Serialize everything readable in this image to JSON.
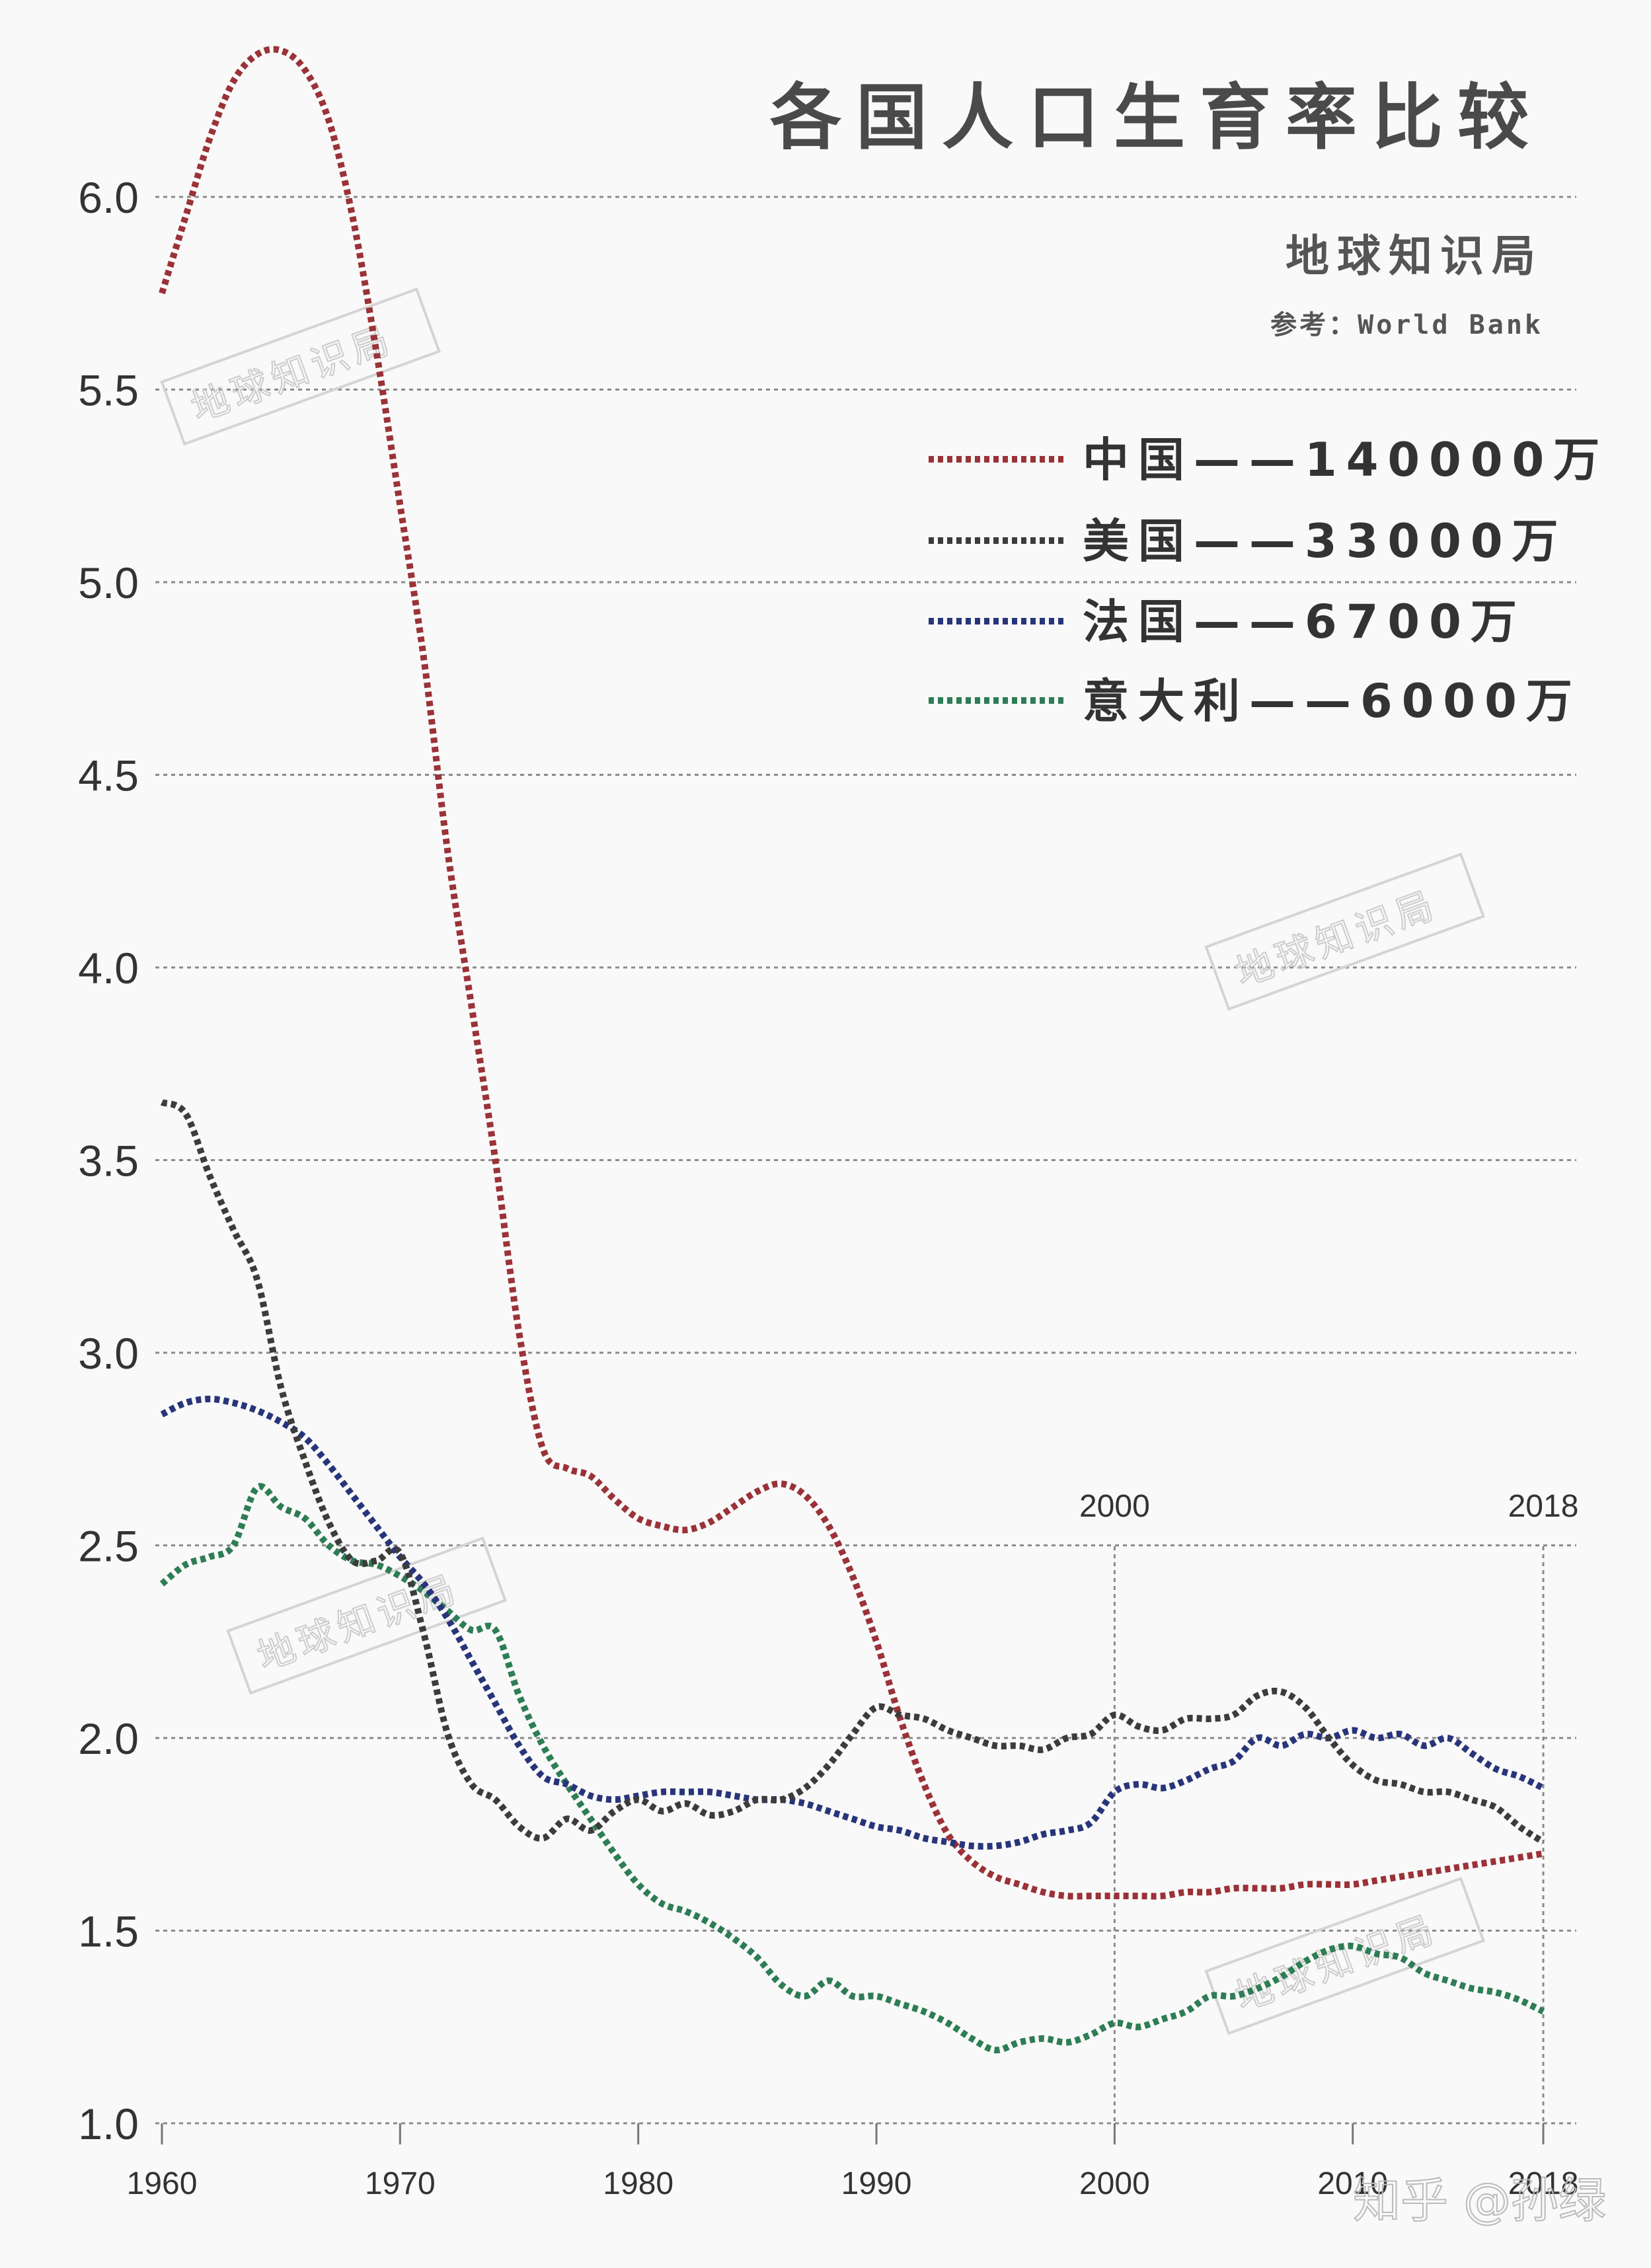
{
  "title": "各国人口生育率比较",
  "subtitle": "地球知识局",
  "source": "参考：World Bank",
  "watermark": "地球知识局",
  "footer_watermark": "知乎 @孙绿",
  "chart_data": {
    "type": "line",
    "ylim": [
      1.0,
      6.2
    ],
    "xlim": [
      1960,
      2018
    ],
    "grid": true,
    "legend_position": "top-right",
    "yticks": [
      "1.0",
      "1.5",
      "2.0",
      "2.5",
      "3.0",
      "3.5",
      "4.0",
      "4.5",
      "5.0",
      "5.5",
      "6.0"
    ],
    "xticks": [
      "1960",
      "1970",
      "1980",
      "1990",
      "2000",
      "2010",
      "2018"
    ],
    "annotations": [
      {
        "x": 2000,
        "label": "2000"
      },
      {
        "x": 2018,
        "label": "2018"
      }
    ],
    "series": [
      {
        "name": "中国",
        "legend": "中国——140000万",
        "color": "#9b3238",
        "x": [
          1960,
          1961,
          1962,
          1963,
          1964,
          1965,
          1966,
          1967,
          1968,
          1969,
          1970,
          1971,
          1972,
          1973,
          1974,
          1975,
          1976,
          1977,
          1978,
          1979,
          1980,
          1981,
          1982,
          1983,
          1984,
          1985,
          1986,
          1987,
          1988,
          1989,
          1990,
          1991,
          1992,
          1993,
          1994,
          1995,
          1996,
          1997,
          1998,
          1999,
          2000,
          2001,
          2002,
          2003,
          2004,
          2005,
          2006,
          2007,
          2008,
          2009,
          2010,
          2011,
          2012,
          2013,
          2014,
          2015,
          2016,
          2017,
          2018
        ],
        "y": [
          5.75,
          5.95,
          6.15,
          6.3,
          6.37,
          6.38,
          6.33,
          6.2,
          5.95,
          5.6,
          5.2,
          4.8,
          4.3,
          3.9,
          3.5,
          3.05,
          2.75,
          2.7,
          2.68,
          2.62,
          2.57,
          2.55,
          2.54,
          2.56,
          2.6,
          2.64,
          2.66,
          2.63,
          2.55,
          2.42,
          2.25,
          2.05,
          1.88,
          1.75,
          1.68,
          1.64,
          1.62,
          1.6,
          1.59,
          1.59,
          1.59,
          1.59,
          1.59,
          1.6,
          1.6,
          1.61,
          1.61,
          1.61,
          1.62,
          1.62,
          1.62,
          1.63,
          1.64,
          1.65,
          1.66,
          1.67,
          1.68,
          1.69,
          1.7
        ]
      },
      {
        "name": "美国",
        "legend": "美国——33000万",
        "color": "#3c3c3c",
        "x": [
          1960,
          1961,
          1962,
          1963,
          1964,
          1965,
          1966,
          1967,
          1968,
          1969,
          1970,
          1971,
          1972,
          1973,
          1974,
          1975,
          1976,
          1977,
          1978,
          1979,
          1980,
          1981,
          1982,
          1983,
          1984,
          1985,
          1986,
          1987,
          1988,
          1989,
          1990,
          1991,
          1992,
          1993,
          1994,
          1995,
          1996,
          1997,
          1998,
          1999,
          2000,
          2001,
          2002,
          2003,
          2004,
          2005,
          2006,
          2007,
          2008,
          2009,
          2010,
          2011,
          2012,
          2013,
          2014,
          2015,
          2016,
          2017,
          2018
        ],
        "y": [
          3.65,
          3.62,
          3.46,
          3.32,
          3.19,
          2.91,
          2.72,
          2.56,
          2.46,
          2.46,
          2.48,
          2.27,
          2.01,
          1.88,
          1.84,
          1.77,
          1.74,
          1.79,
          1.76,
          1.81,
          1.84,
          1.81,
          1.83,
          1.8,
          1.81,
          1.84,
          1.84,
          1.87,
          1.93,
          2.01,
          2.08,
          2.06,
          2.05,
          2.02,
          2.0,
          1.98,
          1.98,
          1.97,
          2.0,
          2.01,
          2.06,
          2.03,
          2.02,
          2.05,
          2.05,
          2.06,
          2.11,
          2.12,
          2.08,
          2.0,
          1.93,
          1.89,
          1.88,
          1.86,
          1.86,
          1.84,
          1.82,
          1.77,
          1.73
        ]
      },
      {
        "name": "法国",
        "legend": "法国——6700万",
        "color": "#28357a",
        "x": [
          1960,
          1961,
          1962,
          1963,
          1964,
          1965,
          1966,
          1967,
          1968,
          1969,
          1970,
          1971,
          1972,
          1973,
          1974,
          1975,
          1976,
          1977,
          1978,
          1979,
          1980,
          1981,
          1982,
          1983,
          1984,
          1985,
          1986,
          1987,
          1988,
          1989,
          1990,
          1991,
          1992,
          1993,
          1994,
          1995,
          1996,
          1997,
          1998,
          1999,
          2000,
          2001,
          2002,
          2003,
          2004,
          2005,
          2006,
          2007,
          2008,
          2009,
          2010,
          2011,
          2012,
          2013,
          2014,
          2015,
          2016,
          2017,
          2018
        ],
        "y": [
          2.84,
          2.87,
          2.88,
          2.87,
          2.85,
          2.82,
          2.78,
          2.71,
          2.63,
          2.55,
          2.47,
          2.4,
          2.31,
          2.2,
          2.09,
          1.98,
          1.9,
          1.88,
          1.85,
          1.84,
          1.85,
          1.86,
          1.86,
          1.86,
          1.85,
          1.84,
          1.84,
          1.83,
          1.81,
          1.79,
          1.77,
          1.76,
          1.74,
          1.73,
          1.72,
          1.72,
          1.73,
          1.75,
          1.76,
          1.78,
          1.86,
          1.88,
          1.87,
          1.89,
          1.92,
          1.94,
          2.0,
          1.98,
          2.01,
          2.0,
          2.02,
          2.0,
          2.01,
          1.98,
          2.0,
          1.96,
          1.92,
          1.9,
          1.87
        ]
      },
      {
        "name": "意大利",
        "legend": "意大利——6000万",
        "color": "#2e7d54",
        "x": [
          1960,
          1961,
          1962,
          1963,
          1964,
          1965,
          1966,
          1967,
          1968,
          1969,
          1970,
          1971,
          1972,
          1973,
          1974,
          1975,
          1976,
          1977,
          1978,
          1979,
          1980,
          1981,
          1982,
          1983,
          1984,
          1985,
          1986,
          1987,
          1988,
          1989,
          1990,
          1991,
          1992,
          1993,
          1994,
          1995,
          1996,
          1997,
          1998,
          1999,
          2000,
          2001,
          2002,
          2003,
          2004,
          2005,
          2006,
          2007,
          2008,
          2009,
          2010,
          2011,
          2012,
          2013,
          2014,
          2015,
          2016,
          2017,
          2018
        ],
        "y": [
          2.4,
          2.45,
          2.47,
          2.5,
          2.65,
          2.6,
          2.57,
          2.5,
          2.46,
          2.45,
          2.42,
          2.38,
          2.33,
          2.28,
          2.28,
          2.11,
          1.98,
          1.88,
          1.79,
          1.7,
          1.62,
          1.57,
          1.55,
          1.52,
          1.48,
          1.43,
          1.36,
          1.33,
          1.37,
          1.33,
          1.33,
          1.31,
          1.29,
          1.26,
          1.22,
          1.19,
          1.21,
          1.22,
          1.21,
          1.23,
          1.26,
          1.25,
          1.27,
          1.29,
          1.33,
          1.33,
          1.35,
          1.38,
          1.42,
          1.45,
          1.46,
          1.44,
          1.43,
          1.39,
          1.37,
          1.35,
          1.34,
          1.32,
          1.29
        ]
      }
    ]
  }
}
